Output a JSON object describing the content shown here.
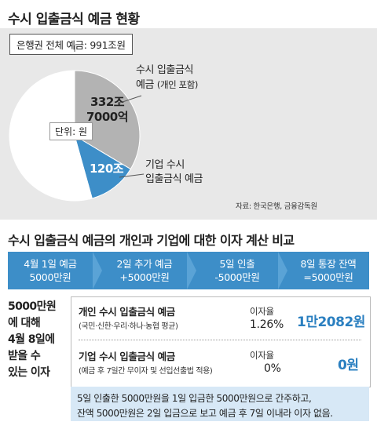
{
  "header": {
    "title": "수시 입출금식 예금 현황"
  },
  "total_label": "은행권 전체 예금: 991조원",
  "unit_label": "단위: 원",
  "source": "자료: 한국은행, 금융감독원",
  "chart_data": {
    "type": "pie",
    "title": "수시 입출금식 예금 현황",
    "total": {
      "label": "은행권 전체 예금",
      "value": 991,
      "unit": "조원"
    },
    "slices": [
      {
        "name": "수시 입출금식 예금 (개인 포함)",
        "value": 332.7,
        "display": "332조 7000억",
        "color": "#b3b3b3"
      },
      {
        "name": "기업 수시 입출금식 예금",
        "value": 120,
        "display": "120조",
        "color": "#3d8ec8"
      },
      {
        "name": "",
        "value": 538.3,
        "color": "#ffffff"
      }
    ]
  },
  "pie_labels": {
    "individual_name_line1": "수시 입출금식",
    "individual_name_line2": "예금",
    "individual_name_paren": "(개인 포함)",
    "individual_value_line1": "332조",
    "individual_value_line2": "7000억",
    "corporate_name_line1": "기업 수시",
    "corporate_name_line2": "입출금식 예금",
    "corporate_value": "120조"
  },
  "section2": {
    "title": "수시 입출금식 예금의 개인과 기업에 대한 이자 계산 비교"
  },
  "timeline": [
    {
      "line1": "4월 1일  예금",
      "line2": "5000만원"
    },
    {
      "line1": "2일  추가 예금",
      "line2": "+5000만원"
    },
    {
      "line1": "5일  인출",
      "line2": "-5000만원"
    },
    {
      "line1": "8일  통장 잔액",
      "line2": "=5000만원"
    }
  ],
  "question": [
    "5000만원",
    "에 대해",
    "4월 8일에",
    "받을 수",
    "있는 이자"
  ],
  "comparison": {
    "rate_label": "이자율",
    "rows": [
      {
        "name": "개인 수시 입출금식 예금",
        "sub": "(국민·신한·우리·하나·농협 평균)",
        "rate": "1.26%",
        "interest": "1만2082원"
      },
      {
        "name": "기업 수시 입출금식 예금",
        "sub": "(예금 후 7일간 무이자 및 선입선출법 적용)",
        "rate": "0%",
        "interest": "0원"
      }
    ]
  },
  "note": {
    "line1": "5일 인출한 5000만원을 1일 입금한 5000만원으로 간주하고,",
    "line2": "잔액 5000만원은 2일 입금으로 보고 예금 후 7일 이내라 이자 없음."
  }
}
